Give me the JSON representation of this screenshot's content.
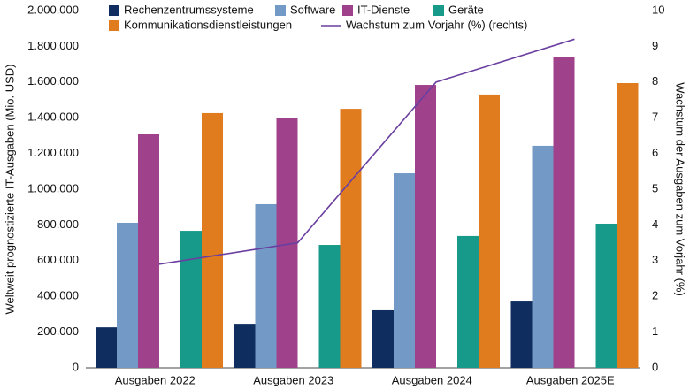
{
  "chart_data": {
    "type": "bar",
    "y_label": "Weltweit prognostizierte IT-Ausgaben (Mio. USD)",
    "y2_label": "Wachstum der Ausgaben zum Vorjahr (%)",
    "categories": [
      "Ausgaben 2022",
      "Ausgaben 2023",
      "Ausgaben 2024",
      "Ausgaben 2025E"
    ],
    "series": [
      {
        "name": "Rechenzentrumssysteme",
        "color": "#0f2d5e",
        "values": [
          227000,
          242000,
          322000,
          371000
        ]
      },
      {
        "name": "Software",
        "color": "#7399c6",
        "values": [
          812000,
          916000,
          1089000,
          1243000
        ]
      },
      {
        "name": "IT-Dienste",
        "color": "#a0418b",
        "values": [
          1307000,
          1401000,
          1584000,
          1738000
        ]
      },
      {
        "name": "Geräte",
        "color": "#179a8a",
        "values": [
          767000,
          688000,
          738000,
          807000
        ]
      },
      {
        "name": "Kommunikationsdienstleistungen",
        "color": "#e07b1e",
        "values": [
          1426000,
          1450000,
          1530000,
          1594000
        ]
      },
      {
        "name": "Wachstum zum Vorjahr (%) (rechts)",
        "color": "#6a3fa0",
        "type": "line",
        "axis": "y2",
        "values": [
          2.9,
          3.5,
          8.0,
          9.2
        ]
      }
    ],
    "ylim": [
      0,
      2000000
    ],
    "yticks": [
      0,
      {
        "value": 200000,
        "label": "200.000"
      },
      {
        "value": 400000,
        "label": "400.000"
      },
      {
        "value": 600000,
        "label": "600.000"
      },
      {
        "value": 800000,
        "label": "800.000"
      },
      {
        "value": 1000000,
        "label": "1.000.000"
      },
      {
        "value": 1200000,
        "label": "1.200.000"
      },
      {
        "value": 1400000,
        "label": "1.400.000"
      },
      {
        "value": 1600000,
        "label": "1.600.000"
      },
      {
        "value": 1800000,
        "label": "1.800.000"
      },
      {
        "value": 2000000,
        "label": "2.000.000"
      }
    ],
    "y2lim": [
      0,
      10
    ],
    "y2ticks": [
      0,
      1,
      2,
      3,
      4,
      5,
      6,
      7,
      8,
      9,
      10
    ],
    "grid": false,
    "legend": "top"
  }
}
